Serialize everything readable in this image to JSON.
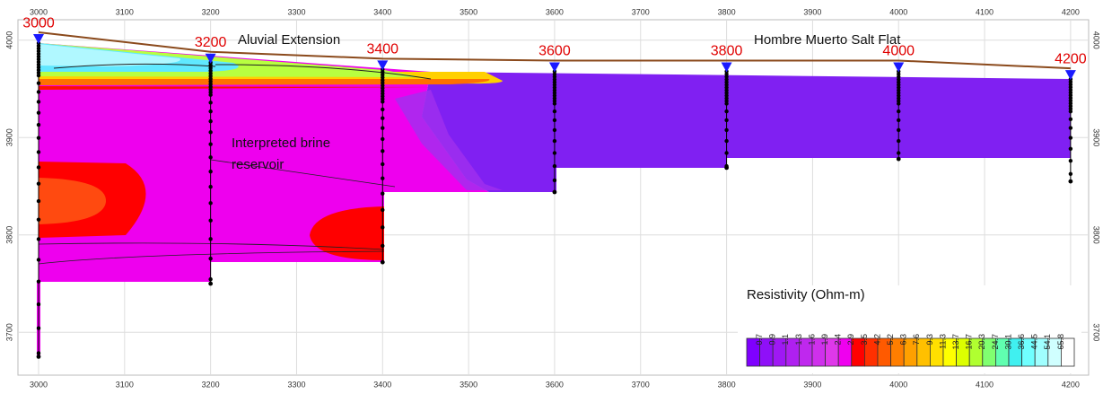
{
  "chart_data": {
    "type": "section",
    "xlim": [
      2976,
      4221
    ],
    "ylim": [
      3656,
      4021
    ],
    "xticks": [
      3000,
      3100,
      3200,
      3300,
      3400,
      3500,
      3600,
      3700,
      3800,
      3900,
      4000,
      4100,
      4200
    ],
    "yticks": [
      3700,
      3800,
      3900,
      4000
    ],
    "grid": true,
    "stations": [
      {
        "label": "3000",
        "x": 3000,
        "elevation": 3997,
        "bottom": 3675
      },
      {
        "label": "3200",
        "x": 3200,
        "elevation": 3977,
        "bottom": 3750
      },
      {
        "label": "3400",
        "x": 3400,
        "elevation": 3970,
        "bottom": 3772
      },
      {
        "label": "3600",
        "x": 3600,
        "elevation": 3968,
        "bottom": 3844
      },
      {
        "label": "3800",
        "x": 3800,
        "elevation": 3968,
        "bottom": 3869
      },
      {
        "label": "4000",
        "x": 4000,
        "elevation": 3968,
        "bottom": 3878
      },
      {
        "label": "4200",
        "x": 4200,
        "elevation": 3960,
        "bottom": 3855
      }
    ],
    "annotations": {
      "alluvial": "Aluvial Extension",
      "salt_flat": "Hombre Muerto Salt Flat",
      "reservoir": [
        "Interpreted brine",
        "reservoir"
      ]
    },
    "colorbar": {
      "title": "Resistivity (Ohm-m)",
      "labels": [
        0.7,
        0.9,
        1.1,
        1.3,
        1.6,
        1.9,
        2.4,
        2.9,
        3.5,
        4.2,
        5.2,
        6.3,
        7.6,
        9.3,
        11.3,
        13.7,
        16.7,
        20.3,
        24.7,
        30.1,
        36.6,
        44.5,
        54.1,
        65.8
      ],
      "colors": [
        "#7f00ff",
        "#8f10f8",
        "#9f18f4",
        "#af20f0",
        "#bf28ee",
        "#cf30ec",
        "#df38ea",
        "#ef00ef",
        "#ff0000",
        "#ff3000",
        "#ff5a00",
        "#ff7e00",
        "#ffa000",
        "#ffc000",
        "#ffe000",
        "#ffff00",
        "#ddff00",
        "#b0ff30",
        "#80ff70",
        "#60ffb0",
        "#40f0f0",
        "#70ffff",
        "#a0ffff",
        "#d0ffff",
        "#ffffff"
      ]
    }
  }
}
